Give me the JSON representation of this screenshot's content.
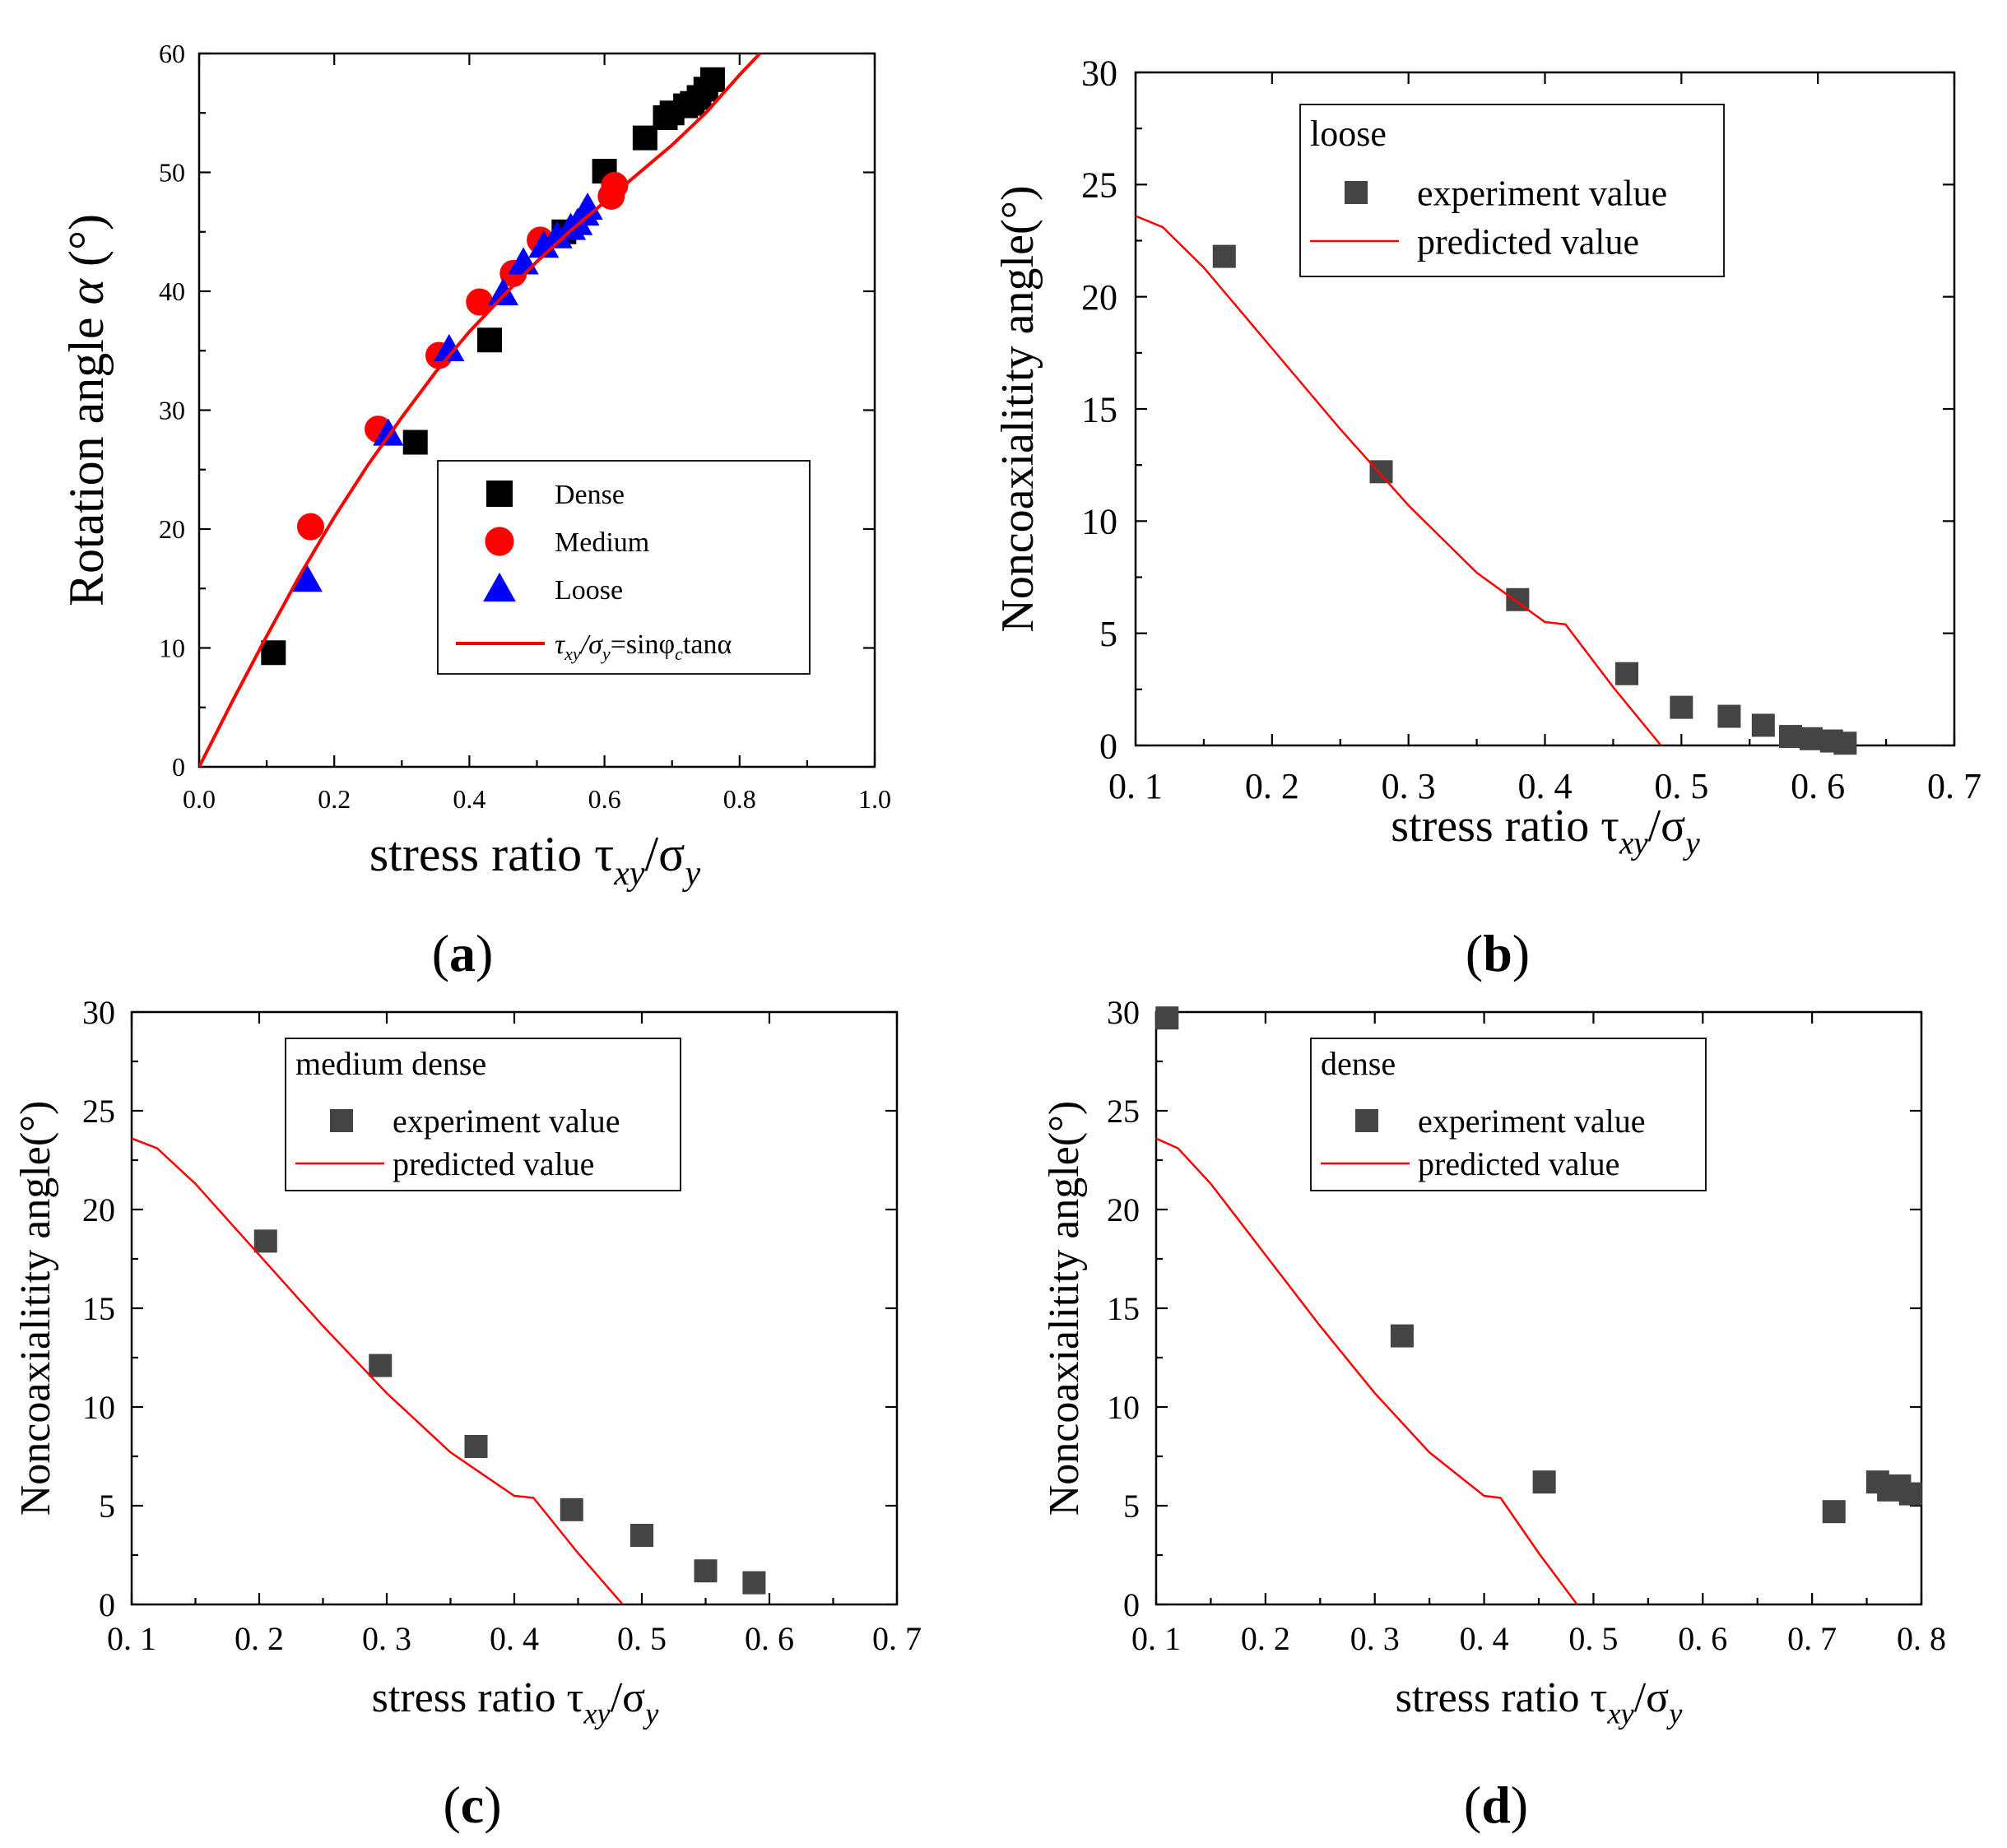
{
  "chart_data": [
    {
      "id": "a",
      "type": "scatter",
      "panel_label": "a",
      "xlabel": "stress ratio τ",
      "xlabel_sub1": "xy",
      "xlabel_mid": "/σ",
      "xlabel_sub2": "y",
      "ylabel": "Rotation angle ",
      "ylabel_symbol": "α",
      "ylabel_unit": " (°)",
      "xlim": [
        0,
        1.0
      ],
      "ylim": [
        0,
        60
      ],
      "xticks": [
        0.0,
        0.2,
        0.4,
        0.6,
        0.8,
        1.0
      ],
      "xtick_labels": [
        "0.0",
        "0.2",
        "0.4",
        "0.6",
        "0.8",
        "1.0"
      ],
      "yticks": [
        0,
        10,
        20,
        30,
        40,
        50,
        60
      ],
      "ytick_labels": [
        "0",
        "10",
        "20",
        "30",
        "40",
        "50",
        "60"
      ],
      "legend": {
        "entries": [
          "Dense",
          "Medium",
          "Loose"
        ],
        "curve_parts": [
          "τ",
          "xy",
          "/σ",
          "y",
          "=sinφ",
          "c",
          "tanα"
        ]
      },
      "series": [
        {
          "name": "Dense",
          "marker": "square",
          "color": "#000000",
          "x": [
            0.11,
            0.32,
            0.43,
            0.54,
            0.6,
            0.66,
            0.69,
            0.7,
            0.72,
            0.73,
            0.74,
            0.75,
            0.76
          ],
          "y": [
            9.6,
            27.3,
            35.9,
            45.0,
            50.1,
            52.9,
            54.6,
            55.0,
            55.6,
            55.8,
            56.3,
            57.0,
            57.8
          ]
        },
        {
          "name": "Medium",
          "marker": "circle",
          "color": "#ff0000",
          "x": [
            0.165,
            0.265,
            0.355,
            0.415,
            0.465,
            0.505,
            0.61,
            0.615
          ],
          "y": [
            20.2,
            28.4,
            34.6,
            39.1,
            41.5,
            44.3,
            48.0,
            48.9
          ]
        },
        {
          "name": "Loose",
          "marker": "triangle",
          "color": "#0000ff",
          "x": [
            0.16,
            0.28,
            0.37,
            0.45,
            0.48,
            0.51,
            0.53,
            0.55,
            0.56,
            0.57,
            0.575
          ],
          "y": [
            15.7,
            28.0,
            35.1,
            39.8,
            42.4,
            43.8,
            44.6,
            45.3,
            45.7,
            46.5,
            47.0
          ]
        },
        {
          "name": "τxy/σy=sinφc tanα",
          "type": "line",
          "color": "#ff0000",
          "x": [
            0,
            0.05,
            0.1,
            0.15,
            0.2,
            0.25,
            0.3,
            0.35,
            0.4,
            0.45,
            0.5,
            0.55,
            0.6,
            0.65,
            0.7,
            0.75,
            0.8,
            0.83
          ],
          "y": [
            0,
            5.6,
            11.0,
            16.2,
            21.0,
            25.4,
            29.4,
            33.2,
            36.6,
            39.6,
            42.5,
            45.1,
            47.5,
            49.9,
            52.3,
            55.0,
            58.2,
            60.0
          ]
        }
      ]
    },
    {
      "id": "b",
      "type": "scatter",
      "panel_label": "b",
      "xlabel": "stress ratio τ",
      "xlabel_sub1": "xy",
      "xlabel_mid": "/σ",
      "xlabel_sub2": "y",
      "ylabel": "Noncoaxialitity angle(°)",
      "xlim": [
        0.1,
        0.7
      ],
      "ylim": [
        0,
        30
      ],
      "xticks": [
        0.1,
        0.2,
        0.3,
        0.4,
        0.5,
        0.6,
        0.7
      ],
      "xtick_labels": [
        "0. 1",
        "0. 2",
        "0. 3",
        "0. 4",
        "0. 5",
        "0. 6",
        "0. 7"
      ],
      "yticks": [
        0,
        5,
        10,
        15,
        20,
        25,
        30
      ],
      "ytick_labels": [
        "0",
        "5",
        "10",
        "15",
        "20",
        "25",
        "30"
      ],
      "legend": {
        "title": "loose",
        "entries": [
          "experiment value",
          "predicted value"
        ]
      },
      "series": [
        {
          "name": "experiment value",
          "marker": "square",
          "color": "#444444",
          "x": [
            0.165,
            0.28,
            0.38,
            0.46,
            0.5,
            0.535,
            0.56,
            0.58,
            0.595,
            0.61,
            0.62
          ],
          "y": [
            21.8,
            12.2,
            6.5,
            3.2,
            1.7,
            1.3,
            0.9,
            0.4,
            0.3,
            0.2,
            0.1
          ]
        },
        {
          "name": "predicted value",
          "type": "line",
          "color": "#ff0000",
          "x": [
            0.1,
            0.12,
            0.15,
            0.2,
            0.25,
            0.3,
            0.35,
            0.4,
            0.415,
            0.45,
            0.485
          ],
          "y": [
            23.6,
            23.1,
            21.3,
            17.7,
            14.1,
            10.7,
            7.7,
            5.5,
            5.4,
            2.6,
            0
          ]
        }
      ]
    },
    {
      "id": "c",
      "type": "scatter",
      "panel_label": "c",
      "xlabel": "stress ratio τ",
      "xlabel_sub1": "xy",
      "xlabel_mid": "/σ",
      "xlabel_sub2": "y",
      "ylabel": "Noncoaxialitity angle(°)",
      "xlim": [
        0.1,
        0.7
      ],
      "ylim": [
        0,
        30
      ],
      "xticks": [
        0.1,
        0.2,
        0.3,
        0.4,
        0.5,
        0.6,
        0.7
      ],
      "xtick_labels": [
        "0. 1",
        "0. 2",
        "0. 3",
        "0. 4",
        "0. 5",
        "0. 6",
        "0. 7"
      ],
      "yticks": [
        0,
        5,
        10,
        15,
        20,
        25,
        30
      ],
      "ytick_labels": [
        "0",
        "5",
        "10",
        "15",
        "20",
        "25",
        "30"
      ],
      "legend": {
        "title": "medium dense",
        "entries": [
          "experiment value",
          "predicted value"
        ]
      },
      "series": [
        {
          "name": "experiment value",
          "marker": "square",
          "color": "#444444",
          "x": [
            0.205,
            0.295,
            0.37,
            0.445,
            0.5,
            0.55,
            0.588
          ],
          "y": [
            18.4,
            12.1,
            8.0,
            4.8,
            3.5,
            1.7,
            1.1
          ]
        },
        {
          "name": "predicted value",
          "type": "line",
          "color": "#ff0000",
          "x": [
            0.1,
            0.12,
            0.15,
            0.2,
            0.25,
            0.3,
            0.35,
            0.4,
            0.415,
            0.45,
            0.485
          ],
          "y": [
            23.6,
            23.1,
            21.3,
            17.7,
            14.1,
            10.7,
            7.7,
            5.5,
            5.4,
            2.6,
            0
          ]
        }
      ]
    },
    {
      "id": "d",
      "type": "scatter",
      "panel_label": "d",
      "xlabel": "stress ratio τ",
      "xlabel_sub1": "xy",
      "xlabel_mid": "/σ",
      "xlabel_sub2": "y",
      "ylabel": "Noncoaxialitity angle(°)",
      "xlim": [
        0.1,
        0.8
      ],
      "ylim": [
        0,
        30
      ],
      "xticks": [
        0.1,
        0.2,
        0.3,
        0.4,
        0.5,
        0.6,
        0.7,
        0.8
      ],
      "xtick_labels": [
        "0. 1",
        "0. 2",
        "0. 3",
        "0. 4",
        "0. 5",
        "0. 6",
        "0. 7",
        "0. 8"
      ],
      "yticks": [
        0,
        5,
        10,
        15,
        20,
        25,
        30
      ],
      "ytick_labels": [
        "0",
        "5",
        "10",
        "15",
        "20",
        "25",
        "30"
      ],
      "legend": {
        "title": "dense",
        "entries": [
          "experiment value",
          "predicted value"
        ]
      },
      "series": [
        {
          "name": "experiment value",
          "marker": "square",
          "color": "#444444",
          "x": [
            0.11,
            0.325,
            0.455,
            0.72,
            0.76,
            0.77,
            0.78,
            0.79
          ],
          "y": [
            29.7,
            13.6,
            6.2,
            4.7,
            6.2,
            5.8,
            6.0,
            5.6
          ]
        },
        {
          "name": "predicted value",
          "type": "line",
          "color": "#ff0000",
          "x": [
            0.1,
            0.12,
            0.15,
            0.2,
            0.25,
            0.3,
            0.35,
            0.4,
            0.415,
            0.45,
            0.485
          ],
          "y": [
            23.6,
            23.1,
            21.3,
            17.7,
            14.1,
            10.7,
            7.7,
            5.5,
            5.4,
            2.6,
            0
          ]
        }
      ]
    }
  ]
}
